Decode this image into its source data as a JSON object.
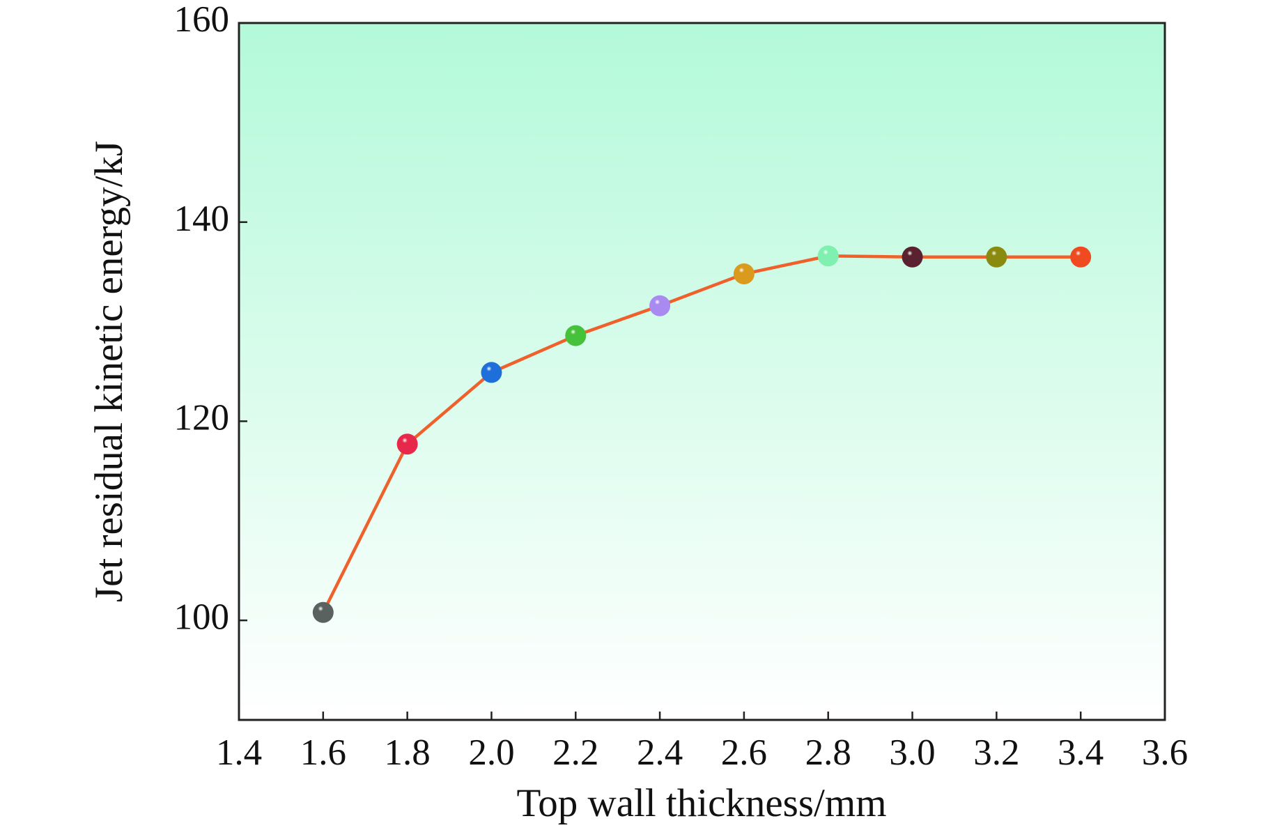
{
  "chart_data": {
    "type": "line",
    "x_label": "Top wall thickness/mm",
    "y_label": "Jet residual kinetic energy/kJ",
    "x": [
      1.6,
      1.8,
      2.0,
      2.2,
      2.4,
      2.6,
      2.8,
      3.0,
      3.2,
      3.4
    ],
    "series": [
      {
        "color": "#f0602a",
        "values": [
          100.8,
          117.7,
          124.9,
          128.6,
          131.6,
          134.8,
          136.6,
          136.5,
          136.5,
          136.5
        ],
        "marker_colors": [
          "#5a625f",
          "#e8284a",
          "#1e6fd9",
          "#45c23a",
          "#a98af0",
          "#d99a1e",
          "#7ff0b0",
          "#5a2230",
          "#8a8a10",
          "#f04a20"
        ]
      }
    ],
    "xlim": [
      1.4,
      3.6
    ],
    "xticks": [
      {
        "value": 1.4,
        "label": "1.4"
      },
      {
        "value": 1.6,
        "label": "1.6"
      },
      {
        "value": 1.8,
        "label": "1.8"
      },
      {
        "value": 2.0,
        "label": "2.0"
      },
      {
        "value": 2.2,
        "label": "2.2"
      },
      {
        "value": 2.4,
        "label": "2.4"
      },
      {
        "value": 2.6,
        "label": "2.6"
      },
      {
        "value": 2.8,
        "label": "2.8"
      },
      {
        "value": 3.0,
        "label": "3.0"
      },
      {
        "value": 3.2,
        "label": "3.2"
      },
      {
        "value": 3.4,
        "label": "3.4"
      },
      {
        "value": 3.6,
        "label": "3.6"
      }
    ],
    "ylim": [
      90,
      160
    ],
    "yticks": [
      100,
      120,
      140,
      160
    ]
  }
}
